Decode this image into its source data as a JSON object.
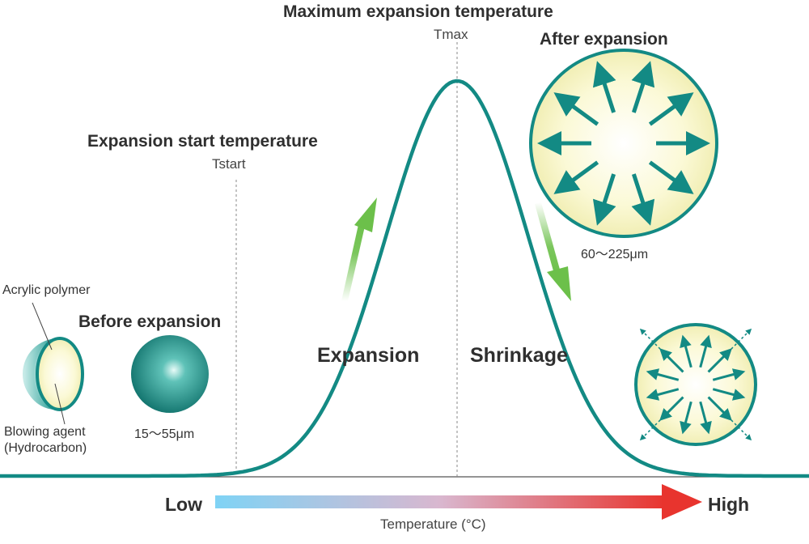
{
  "labels": {
    "max_temp_title": "Maximum expansion temperature",
    "tmax": "Tmax",
    "start_temp_title": "Expansion start temperature",
    "tstart": "Tstart",
    "after_expansion": "After expansion",
    "after_size": "60～225μm",
    "before_expansion": "Before expansion",
    "before_size": "15～55μm",
    "acrylic_polymer": "Acrylic polymer",
    "blowing_agent_1": "Blowing agent",
    "blowing_agent_2": "(Hydrocarbon)",
    "expansion": "Expansion",
    "shrinkage": "Shrinkage",
    "low": "Low",
    "high": "High",
    "axis_label": "Temperature (°C)"
  },
  "colors": {
    "curve": "#138a84",
    "sphere_dark": "#0f7d77",
    "sphere_fill": "#f7f5c4",
    "green_arrow": "#6cc04a",
    "gradient_start": "#7fd3f5",
    "gradient_end": "#e8342e"
  }
}
